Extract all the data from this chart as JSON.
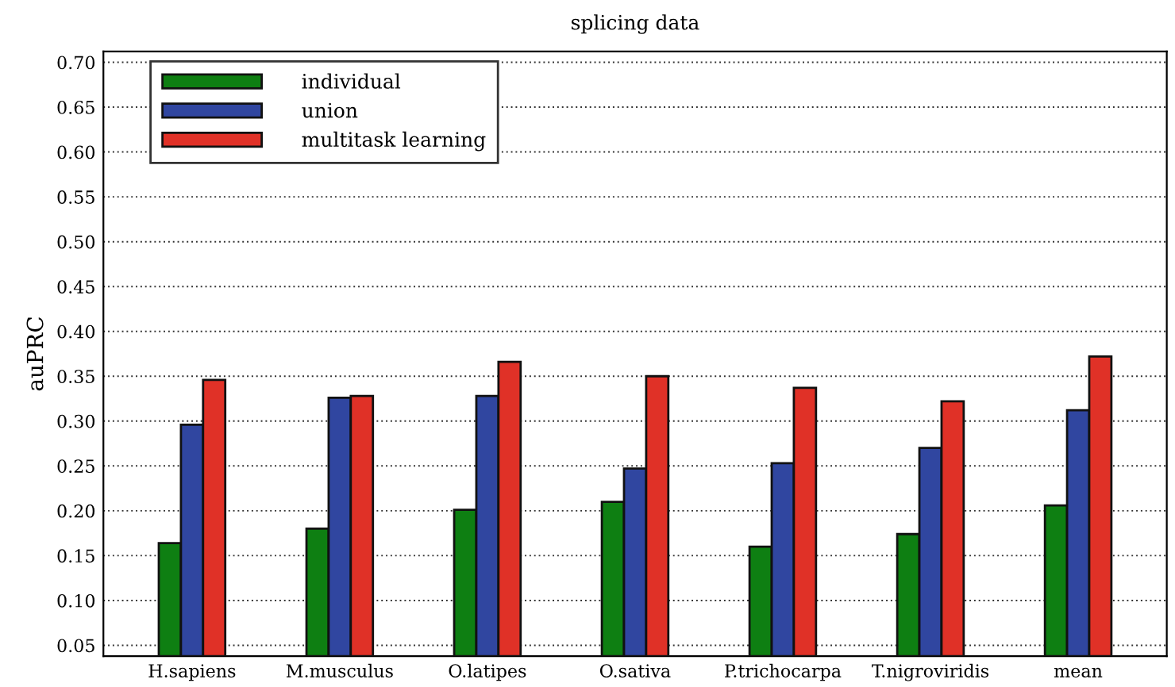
{
  "chart_data": {
    "type": "bar",
    "title": "splicing data",
    "ylabel": "auPRC",
    "categories": [
      "H.sapiens",
      "M.musculus",
      "O.latipes",
      "O.sativa",
      "P.trichocarpa",
      "T.nigroviridis",
      "mean"
    ],
    "series": [
      {
        "name": "individual",
        "color": "#0e7f12",
        "values": [
          0.164,
          0.18,
          0.201,
          0.21,
          0.16,
          0.174,
          0.206
        ]
      },
      {
        "name": "union",
        "color": "#3046a0",
        "values": [
          0.296,
          0.326,
          0.328,
          0.247,
          0.253,
          0.27,
          0.312
        ]
      },
      {
        "name": "multitask learning",
        "color": "#e03127",
        "values": [
          0.346,
          0.328,
          0.366,
          0.35,
          0.337,
          0.322,
          0.372
        ]
      }
    ],
    "ylim": [
      0.038,
      0.712
    ],
    "yticks": [
      {
        "value": 0.05,
        "label": "0.05"
      },
      {
        "value": 0.1,
        "label": "0.10"
      },
      {
        "value": 0.15,
        "label": "0.15"
      },
      {
        "value": 0.2,
        "label": "0.20"
      },
      {
        "value": 0.25,
        "label": "0.25"
      },
      {
        "value": 0.3,
        "label": "0.30"
      },
      {
        "value": 0.35,
        "label": "0.35"
      },
      {
        "value": 0.4,
        "label": "0.40"
      },
      {
        "value": 0.45,
        "label": "0.45"
      },
      {
        "value": 0.5,
        "label": "0.50"
      },
      {
        "value": 0.55,
        "label": "0.55"
      },
      {
        "value": 0.6,
        "label": "0.60"
      },
      {
        "value": 0.65,
        "label": "0.65"
      },
      {
        "value": 0.7,
        "label": "0.70"
      }
    ],
    "grid": "y",
    "legend": "top left"
  }
}
